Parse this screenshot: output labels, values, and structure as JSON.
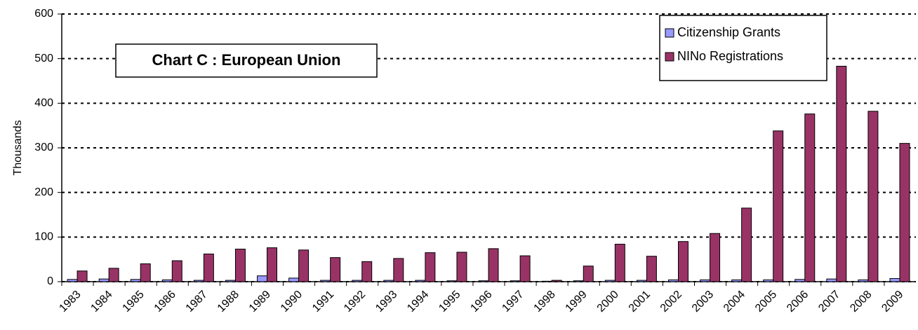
{
  "chart_data": {
    "type": "bar",
    "title": "Chart C : European Union",
    "y_label": "Thousands",
    "categories": [
      "1983",
      "1984",
      "1985",
      "1986",
      "1987",
      "1988",
      "1989",
      "1990",
      "1991",
      "1992",
      "1993",
      "1994",
      "1995",
      "1996",
      "1997",
      "1998",
      "1999",
      "2000",
      "2001",
      "2002",
      "2003",
      "2004",
      "2005",
      "2006",
      "2007",
      "2008",
      "2009"
    ],
    "series": [
      {
        "name": "Citizenship Grants",
        "color": "#9999ff",
        "values": [
          5,
          6,
          5,
          4,
          3,
          3,
          13,
          8,
          3,
          3,
          3,
          3,
          2,
          2,
          2,
          1,
          2,
          3,
          3,
          4,
          4,
          4,
          4,
          5,
          6,
          4,
          7
        ]
      },
      {
        "name": "NINo Registrations",
        "color": "#993366",
        "values": [
          24,
          30,
          40,
          47,
          62,
          73,
          76,
          71,
          54,
          45,
          52,
          65,
          66,
          74,
          58,
          3,
          35,
          84,
          57,
          90,
          108,
          165,
          338,
          376,
          483,
          382,
          310
        ]
      }
    ],
    "ylim": [
      0,
      600
    ],
    "yticks": [
      0,
      100,
      200,
      300,
      400,
      500,
      600
    ],
    "grid": true
  }
}
